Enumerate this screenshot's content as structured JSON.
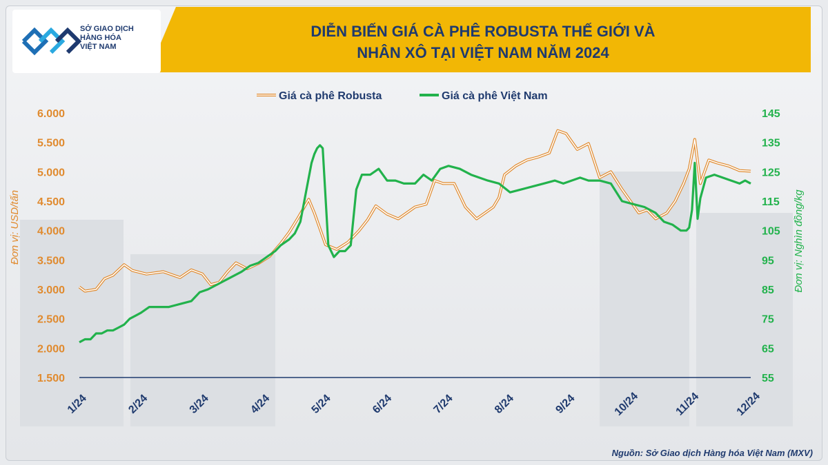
{
  "header": {
    "logo": {
      "lines": [
        "SỞ GIAO DỊCH",
        "HÀNG HÓA",
        "VIỆT NAM"
      ],
      "icon": "mxv-chevron-logo-icon"
    },
    "title_line1": "DIỄN BIẾN GIÁ CÀ PHÊ ROBUSTA THẾ GIỚI VÀ",
    "title_line2": "NHÂN XÔ TẠI VIỆT NAM NĂM 2024"
  },
  "source": "Nguồn: Sở Giao dịch Hàng hóa Việt Nam (MXV)",
  "colors": {
    "robusta": "#e08a2e",
    "vietnam": "#22b24c",
    "title_bar": "#f2b705",
    "navy": "#1f3a6e"
  },
  "chart_data": {
    "type": "line",
    "legend_position": "top-center",
    "grid": false,
    "x_ticks": [
      "1/24",
      "2/24",
      "3/24",
      "4/24",
      "5/24",
      "6/24",
      "7/24",
      "8/24",
      "9/24",
      "10/24",
      "11/24",
      "12/24"
    ],
    "y_left": {
      "label": "Đơn vị: USD/tấn",
      "range": [
        1500,
        6000
      ],
      "ticks": [
        "6.000",
        "5.500",
        "5.000",
        "4.500",
        "4.000",
        "3.500",
        "3.000",
        "2.500",
        "2.000",
        "1.500"
      ]
    },
    "y_right": {
      "label": "Đơn vị: Nghìn đồng/kg",
      "range": [
        55,
        145
      ],
      "ticks": [
        "145",
        "135",
        "125",
        "115",
        "105",
        "95",
        "85",
        "75",
        "65",
        "55"
      ]
    },
    "series": [
      {
        "name": "Giá cà phê Robusta",
        "axis": "left",
        "x": [
          0,
          0.1,
          0.3,
          0.45,
          0.6,
          0.8,
          0.95,
          1.2,
          1.5,
          1.8,
          2.0,
          2.2,
          2.35,
          2.5,
          2.65,
          2.8,
          3.0,
          3.2,
          3.4,
          3.6,
          3.75,
          3.9,
          4.1,
          4.2,
          4.4,
          4.6,
          4.8,
          5.0,
          5.15,
          5.3,
          5.5,
          5.7,
          5.85,
          6.0,
          6.2,
          6.35,
          6.5,
          6.7,
          6.9,
          7.1,
          7.25,
          7.4,
          7.5,
          7.6,
          7.8,
          8.0,
          8.2,
          8.4,
          8.55,
          8.7,
          8.9,
          9.1,
          9.3,
          9.5,
          9.7,
          9.85,
          10.0,
          10.15,
          10.3,
          10.5,
          10.65,
          10.8,
          10.9,
          11.0,
          11.1,
          11.25,
          11.4,
          11.6,
          11.8,
          12.0
        ],
        "values": [
          3040,
          2970,
          3000,
          3180,
          3240,
          3420,
          3320,
          3260,
          3300,
          3200,
          3330,
          3260,
          3080,
          3120,
          3300,
          3450,
          3350,
          3440,
          3560,
          3780,
          3970,
          4200,
          4530,
          4300,
          3760,
          3680,
          3800,
          4000,
          4180,
          4420,
          4280,
          4200,
          4300,
          4400,
          4450,
          4850,
          4800,
          4800,
          4400,
          4200,
          4300,
          4400,
          4560,
          4950,
          5100,
          5200,
          5250,
          5320,
          5700,
          5650,
          5380,
          5480,
          4900,
          5000,
          4700,
          4500,
          4300,
          4350,
          4200,
          4300,
          4500,
          4800,
          5050,
          5550,
          4800,
          5200,
          5150,
          5100,
          5020,
          5010
        ]
      },
      {
        "name": "Giá cà phê Việt Nam",
        "axis": "right",
        "x": [
          0,
          0.1,
          0.2,
          0.3,
          0.4,
          0.5,
          0.6,
          0.7,
          0.8,
          0.9,
          1.0,
          1.1,
          1.25,
          1.4,
          1.6,
          1.8,
          2.0,
          2.15,
          2.3,
          2.5,
          2.7,
          2.9,
          3.05,
          3.2,
          3.35,
          3.5,
          3.6,
          3.75,
          3.85,
          3.95,
          4.05,
          4.15,
          4.2,
          4.25,
          4.3,
          4.35,
          4.45,
          4.55,
          4.65,
          4.75,
          4.85,
          4.95,
          5.05,
          5.2,
          5.35,
          5.5,
          5.65,
          5.8,
          6.0,
          6.15,
          6.3,
          6.45,
          6.6,
          6.8,
          7.0,
          7.15,
          7.3,
          7.5,
          7.7,
          7.9,
          8.1,
          8.3,
          8.5,
          8.65,
          8.8,
          8.95,
          9.1,
          9.3,
          9.5,
          9.7,
          9.9,
          10.1,
          10.3,
          10.45,
          10.6,
          10.75,
          10.85,
          10.9,
          10.95,
          11.0,
          11.05,
          11.1,
          11.2,
          11.35,
          11.5,
          11.65,
          11.8,
          11.9,
          12.0
        ],
        "values": [
          67,
          68,
          68,
          70,
          70,
          71,
          71,
          72,
          73,
          75,
          76,
          77,
          79,
          79,
          79,
          80,
          81,
          84,
          85,
          87,
          89,
          91,
          93,
          94,
          96,
          98,
          100,
          102,
          104,
          108,
          118,
          128,
          131,
          133,
          134,
          133,
          100,
          96,
          98,
          98,
          100,
          119,
          124,
          124,
          126,
          122,
          122,
          121,
          121,
          124,
          122,
          126,
          127,
          126,
          124,
          123,
          122,
          121,
          118,
          119,
          120,
          121,
          122,
          121,
          122,
          123,
          122,
          122,
          121,
          115,
          114,
          113,
          111,
          108,
          107,
          105,
          105,
          106,
          112,
          128,
          109,
          116,
          123,
          124,
          123,
          122,
          121,
          122,
          121
        ]
      }
    ]
  }
}
